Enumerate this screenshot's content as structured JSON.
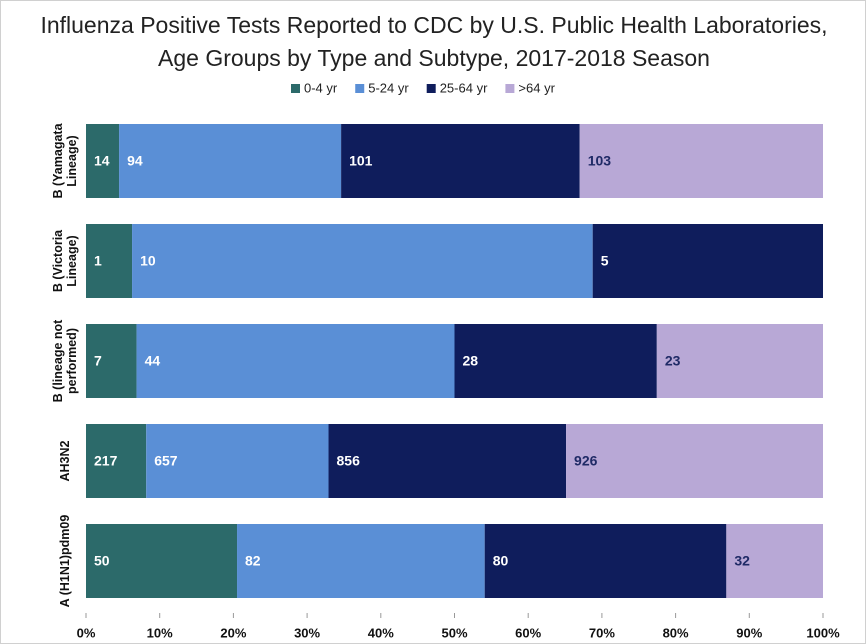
{
  "chart_data": {
    "type": "bar",
    "orientation": "horizontal",
    "stacking": "percent",
    "title": "Influenza Positive Tests Reported to CDC by U.S. Public Health Laboratories, Age Groups by Type and Subtype, 2017-2018 Season",
    "categories": [
      "B (Yamagata Lineage)",
      "B (Victoria Lineage)",
      "B (lineage not performed)",
      "AH3N2",
      "A (H1N1)pdm09"
    ],
    "series": [
      {
        "name": "0-4 yr",
        "color": "#2c6a6a",
        "label_color": "#ffffff",
        "values": [
          14,
          1,
          7,
          217,
          50
        ]
      },
      {
        "name": "5-24 yr",
        "color": "#5a8fd6",
        "label_color": "#ffffff",
        "values": [
          94,
          10,
          44,
          657,
          82
        ]
      },
      {
        "name": "25-64 yr",
        "color": "#0f1d5c",
        "label_color": "#ffffff",
        "values": [
          101,
          5,
          28,
          856,
          80
        ]
      },
      {
        "name": ">64 yr",
        "color": "#b8a8d6",
        "label_color": "#1f2a66",
        "values": [
          103,
          null,
          23,
          926,
          32
        ]
      }
    ],
    "xlim": [
      0,
      100
    ],
    "xticks": [
      {
        "value": 0,
        "label": "0%"
      },
      {
        "value": 10,
        "label": "10%"
      },
      {
        "value": 20,
        "label": "20%"
      },
      {
        "value": 30,
        "label": "30%"
      },
      {
        "value": 40,
        "label": "40%"
      },
      {
        "value": 50,
        "label": "50%"
      },
      {
        "value": 60,
        "label": "60%"
      },
      {
        "value": 70,
        "label": "70%"
      },
      {
        "value": 80,
        "label": "80%"
      },
      {
        "value": 90,
        "label": "90%"
      },
      {
        "value": 100,
        "label": "100%"
      }
    ],
    "legend": "top",
    "grid": false
  }
}
